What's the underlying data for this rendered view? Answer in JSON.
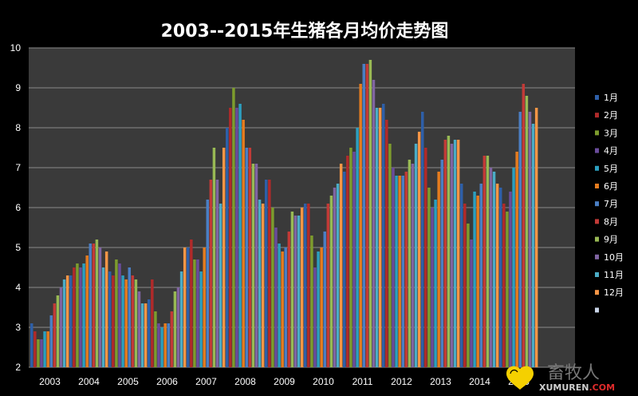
{
  "chart_data": {
    "type": "bar",
    "title": "2003--2015年生猪各月均价走势图",
    "xlabel": "",
    "ylabel": "",
    "ylim": [
      2,
      10
    ],
    "yticks": [
      2,
      3,
      4,
      5,
      6,
      7,
      8,
      9,
      10
    ],
    "grid": true,
    "legend_position": "right",
    "categories": [
      "2003",
      "2004",
      "2005",
      "2006",
      "2007",
      "2008",
      "2009",
      "2010",
      "2011",
      "2012",
      "2013",
      "2014",
      "2015"
    ],
    "series": [
      {
        "name": "1月",
        "color": "#2e5fa8",
        "values": [
          3.1,
          4.3,
          4.4,
          3.7,
          5.0,
          8.0,
          6.7,
          6.1,
          6.9,
          8.6,
          8.4,
          6.6,
          6.5
        ]
      },
      {
        "name": "2月",
        "color": "#b02a2a",
        "values": [
          2.9,
          4.5,
          4.3,
          4.2,
          5.2,
          8.5,
          6.7,
          6.1,
          7.3,
          8.2,
          7.5,
          6.1,
          6.1
        ]
      },
      {
        "name": "3月",
        "color": "#7d9c2d",
        "values": [
          2.7,
          4.6,
          4.7,
          3.4,
          4.7,
          9.0,
          6.0,
          5.3,
          7.5,
          7.6,
          6.5,
          5.6,
          5.9
        ]
      },
      {
        "name": "4月",
        "color": "#6a4c9c",
        "values": [
          2.7,
          4.5,
          4.6,
          3.1,
          4.7,
          8.5,
          5.5,
          4.5,
          7.4,
          7.0,
          6.0,
          5.2,
          6.4
        ]
      },
      {
        "name": "5月",
        "color": "#2c9fbf",
        "values": [
          2.9,
          4.6,
          4.3,
          3.0,
          4.4,
          8.6,
          5.1,
          4.9,
          8.0,
          6.8,
          6.2,
          6.4,
          7.0
        ]
      },
      {
        "name": "6月",
        "color": "#e57c1f",
        "values": [
          2.9,
          4.8,
          4.2,
          3.1,
          5.0,
          8.2,
          4.9,
          5.0,
          9.1,
          6.8,
          6.9,
          6.3,
          7.4
        ]
      },
      {
        "name": "7月",
        "color": "#4a7fc4",
        "values": [
          3.3,
          5.1,
          4.5,
          3.1,
          6.2,
          7.5,
          5.0,
          5.4,
          9.6,
          6.8,
          7.2,
          6.6,
          8.4
        ]
      },
      {
        "name": "8月",
        "color": "#c23a37",
        "values": [
          3.6,
          5.1,
          4.3,
          3.4,
          6.7,
          7.5,
          5.4,
          6.1,
          9.6,
          6.9,
          7.7,
          7.3,
          9.1
        ]
      },
      {
        "name": "9月",
        "color": "#98b954",
        "values": [
          3.8,
          5.2,
          4.2,
          3.9,
          7.5,
          7.1,
          5.9,
          6.3,
          9.7,
          7.2,
          7.8,
          7.3,
          8.8
        ]
      },
      {
        "name": "10月",
        "color": "#8064a2",
        "values": [
          4.0,
          5.0,
          3.9,
          4.0,
          6.7,
          7.1,
          5.8,
          6.5,
          9.2,
          7.1,
          7.6,
          7.0,
          8.4
        ]
      },
      {
        "name": "11月",
        "color": "#4bacc6",
        "values": [
          4.2,
          4.5,
          3.6,
          4.4,
          6.1,
          6.2,
          5.8,
          6.6,
          8.5,
          7.6,
          7.7,
          6.9,
          8.1
        ]
      },
      {
        "name": "12月",
        "color": "#f79646",
        "values": [
          4.3,
          4.9,
          3.6,
          5.0,
          7.5,
          6.1,
          6.0,
          7.1,
          8.5,
          7.9,
          7.7,
          6.6,
          8.5
        ]
      }
    ],
    "legend_extra_swatch": "#c9d4e8"
  },
  "watermark": {
    "cn": "畜牧人",
    "en_main": "XUMUREN",
    "en_suffix": ".COM",
    "heart_color": "#f5d000",
    "suffix_color": "#e02b2b"
  }
}
